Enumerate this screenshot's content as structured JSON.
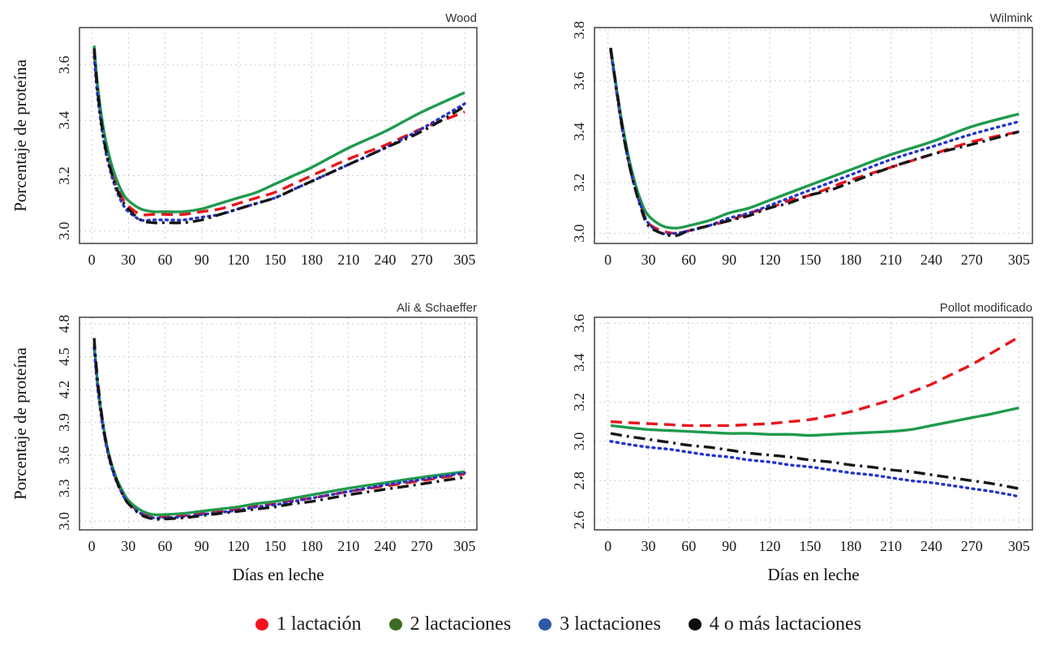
{
  "figure": {
    "background": "#ffffff",
    "axis_label_y": "Porcentaje de proteína",
    "axis_label_x": "Días en leche",
    "legend": {
      "items": [
        {
          "label": "1 lactación",
          "color": "#f5121d"
        },
        {
          "label": "2 lactaciones",
          "color": "#3d6b26"
        },
        {
          "label": "3 lactaciones",
          "color": "#2e59a8"
        },
        {
          "label": "4 o más lactaciones",
          "color": "#0d0d0d"
        }
      ]
    },
    "colors": {
      "curve_red": "#e8141c",
      "curve_green": "#1f9a4e",
      "curve_blue": "#2233cc",
      "curve_black": "#151515",
      "grid": "#cbcbcb",
      "box_border": "#4c4c4c",
      "tick_text": "#1a1a1a",
      "title_text": "#333333"
    }
  },
  "chart_data": [
    {
      "type": "line",
      "title": "Wood",
      "xlabel": "",
      "ylabel": "Porcentaje de proteína",
      "x_ticks": [
        0,
        30,
        60,
        90,
        120,
        150,
        180,
        210,
        240,
        270,
        305
      ],
      "y_ticks": [
        3.0,
        3.2,
        3.4,
        3.6
      ],
      "xlim": [
        -10,
        315
      ],
      "ylim": [
        2.955,
        3.735
      ],
      "grid": true,
      "series": [
        {
          "name": "1 lactación",
          "color": "#e8141c",
          "style": "dashed",
          "x": [
            2,
            5,
            10,
            15,
            20,
            25,
            30,
            40,
            50,
            60,
            75,
            90,
            105,
            120,
            135,
            150,
            165,
            180,
            210,
            240,
            270,
            305
          ],
          "y": [
            3.65,
            3.5,
            3.34,
            3.24,
            3.17,
            3.12,
            3.09,
            3.06,
            3.06,
            3.06,
            3.06,
            3.07,
            3.08,
            3.1,
            3.12,
            3.14,
            3.17,
            3.2,
            3.26,
            3.31,
            3.37,
            3.43
          ]
        },
        {
          "name": "2 lactaciones",
          "color": "#1f9a4e",
          "style": "solid",
          "x": [
            2,
            5,
            10,
            15,
            20,
            25,
            30,
            40,
            50,
            60,
            75,
            90,
            105,
            120,
            135,
            150,
            165,
            180,
            210,
            240,
            270,
            305
          ],
          "y": [
            3.67,
            3.52,
            3.36,
            3.26,
            3.19,
            3.14,
            3.11,
            3.08,
            3.07,
            3.07,
            3.07,
            3.08,
            3.1,
            3.12,
            3.14,
            3.17,
            3.2,
            3.23,
            3.3,
            3.36,
            3.43,
            3.5
          ]
        },
        {
          "name": "3 lactaciones",
          "color": "#2233cc",
          "style": "dotted",
          "x": [
            2,
            5,
            10,
            15,
            20,
            25,
            30,
            40,
            50,
            60,
            75,
            90,
            105,
            120,
            135,
            150,
            165,
            180,
            210,
            240,
            270,
            305
          ],
          "y": [
            3.63,
            3.48,
            3.32,
            3.22,
            3.15,
            3.1,
            3.07,
            3.04,
            3.04,
            3.04,
            3.04,
            3.05,
            3.06,
            3.08,
            3.1,
            3.12,
            3.15,
            3.18,
            3.24,
            3.3,
            3.37,
            3.46
          ]
        },
        {
          "name": "4 o más lactaciones",
          "color": "#151515",
          "style": "dashdot",
          "x": [
            2,
            5,
            10,
            15,
            20,
            25,
            30,
            40,
            50,
            60,
            75,
            90,
            105,
            120,
            135,
            150,
            165,
            180,
            210,
            240,
            270,
            305
          ],
          "y": [
            3.66,
            3.5,
            3.33,
            3.23,
            3.16,
            3.11,
            3.08,
            3.04,
            3.03,
            3.03,
            3.03,
            3.04,
            3.06,
            3.08,
            3.1,
            3.12,
            3.15,
            3.18,
            3.24,
            3.3,
            3.36,
            3.45
          ]
        }
      ]
    },
    {
      "type": "line",
      "title": "Wilmink",
      "xlabel": "",
      "ylabel": "",
      "x_ticks": [
        0,
        30,
        60,
        90,
        120,
        150,
        180,
        210,
        240,
        270,
        305
      ],
      "y_ticks": [
        3.0,
        3.2,
        3.4,
        3.6,
        3.8
      ],
      "xlim": [
        -10,
        315
      ],
      "ylim": [
        2.96,
        3.81
      ],
      "grid": true,
      "series": [
        {
          "name": "1 lactación",
          "color": "#e8141c",
          "style": "dashed",
          "x": [
            2,
            5,
            10,
            15,
            20,
            25,
            30,
            40,
            50,
            60,
            75,
            90,
            105,
            120,
            135,
            150,
            165,
            180,
            210,
            240,
            270,
            305
          ],
          "y": [
            3.72,
            3.61,
            3.43,
            3.29,
            3.18,
            3.1,
            3.04,
            3.01,
            3.0,
            3.01,
            3.03,
            3.05,
            3.08,
            3.1,
            3.13,
            3.15,
            3.18,
            3.21,
            3.26,
            3.31,
            3.36,
            3.4
          ]
        },
        {
          "name": "2 lactaciones",
          "color": "#1f9a4e",
          "style": "solid",
          "x": [
            2,
            5,
            10,
            15,
            20,
            25,
            30,
            40,
            50,
            60,
            75,
            90,
            105,
            120,
            135,
            150,
            165,
            180,
            210,
            240,
            270,
            305
          ],
          "y": [
            3.73,
            3.62,
            3.45,
            3.31,
            3.2,
            3.12,
            3.07,
            3.03,
            3.02,
            3.03,
            3.05,
            3.08,
            3.1,
            3.13,
            3.16,
            3.19,
            3.22,
            3.25,
            3.31,
            3.36,
            3.42,
            3.47
          ]
        },
        {
          "name": "3 lactaciones",
          "color": "#2233cc",
          "style": "dotted",
          "x": [
            2,
            5,
            10,
            15,
            20,
            25,
            30,
            40,
            50,
            60,
            75,
            90,
            105,
            120,
            135,
            150,
            165,
            180,
            210,
            240,
            270,
            305
          ],
          "y": [
            3.72,
            3.61,
            3.43,
            3.29,
            3.18,
            3.1,
            3.04,
            3.0,
            3.0,
            3.01,
            3.03,
            3.06,
            3.08,
            3.11,
            3.14,
            3.17,
            3.2,
            3.23,
            3.29,
            3.34,
            3.39,
            3.44
          ]
        },
        {
          "name": "4 o más lactaciones",
          "color": "#151515",
          "style": "dashdot",
          "x": [
            2,
            5,
            10,
            15,
            20,
            25,
            30,
            40,
            50,
            60,
            75,
            90,
            105,
            120,
            135,
            150,
            165,
            180,
            210,
            240,
            270,
            305
          ],
          "y": [
            3.73,
            3.62,
            3.44,
            3.29,
            3.18,
            3.09,
            3.03,
            3.0,
            2.99,
            3.01,
            3.03,
            3.05,
            3.07,
            3.1,
            3.12,
            3.15,
            3.17,
            3.2,
            3.26,
            3.31,
            3.35,
            3.4
          ]
        }
      ]
    },
    {
      "type": "line",
      "title": "Ali & Schaeffer",
      "xlabel": "Días en leche",
      "ylabel": "Porcentaje de proteína",
      "x_ticks": [
        0,
        30,
        60,
        90,
        120,
        150,
        180,
        210,
        240,
        270,
        305
      ],
      "y_ticks": [
        3.0,
        3.3,
        3.6,
        3.9,
        4.2,
        4.5,
        4.8
      ],
      "xlim": [
        -10,
        315
      ],
      "ylim": [
        2.92,
        4.86
      ],
      "grid": true,
      "series": [
        {
          "name": "1 lactación",
          "color": "#e8141c",
          "style": "dashed",
          "x": [
            2,
            5,
            10,
            15,
            20,
            25,
            30,
            40,
            50,
            60,
            75,
            90,
            105,
            120,
            135,
            150,
            165,
            180,
            210,
            240,
            270,
            305
          ],
          "y": [
            4.6,
            4.22,
            3.81,
            3.55,
            3.38,
            3.26,
            3.17,
            3.08,
            3.05,
            3.04,
            3.05,
            3.07,
            3.09,
            3.11,
            3.14,
            3.16,
            3.19,
            3.21,
            3.27,
            3.32,
            3.37,
            3.43
          ]
        },
        {
          "name": "2 lactaciones",
          "color": "#1f9a4e",
          "style": "solid",
          "x": [
            2,
            5,
            10,
            15,
            20,
            25,
            30,
            40,
            50,
            60,
            75,
            90,
            105,
            120,
            135,
            150,
            165,
            180,
            210,
            240,
            270,
            305
          ],
          "y": [
            4.62,
            4.25,
            3.83,
            3.57,
            3.4,
            3.28,
            3.19,
            3.1,
            3.06,
            3.06,
            3.07,
            3.09,
            3.11,
            3.13,
            3.16,
            3.18,
            3.21,
            3.24,
            3.3,
            3.35,
            3.4,
            3.45
          ]
        },
        {
          "name": "3 lactaciones",
          "color": "#2233cc",
          "style": "dotted",
          "x": [
            2,
            5,
            10,
            15,
            20,
            25,
            30,
            40,
            50,
            60,
            75,
            90,
            105,
            120,
            135,
            150,
            165,
            180,
            210,
            240,
            270,
            305
          ],
          "y": [
            4.58,
            4.2,
            3.8,
            3.54,
            3.37,
            3.25,
            3.16,
            3.07,
            3.03,
            3.03,
            3.04,
            3.06,
            3.08,
            3.1,
            3.13,
            3.15,
            3.18,
            3.21,
            3.27,
            3.33,
            3.38,
            3.44
          ]
        },
        {
          "name": "4 o más lactaciones",
          "color": "#151515",
          "style": "dashdot",
          "x": [
            2,
            5,
            10,
            15,
            20,
            25,
            30,
            40,
            50,
            60,
            75,
            90,
            105,
            120,
            135,
            150,
            165,
            180,
            210,
            240,
            270,
            305
          ],
          "y": [
            4.67,
            4.27,
            3.83,
            3.56,
            3.38,
            3.25,
            3.16,
            3.06,
            3.02,
            3.02,
            3.03,
            3.05,
            3.07,
            3.09,
            3.11,
            3.13,
            3.16,
            3.18,
            3.24,
            3.29,
            3.34,
            3.4
          ]
        }
      ]
    },
    {
      "type": "line",
      "title": "Pollot modificado",
      "xlabel": "Días en leche",
      "ylabel": "",
      "x_ticks": [
        0,
        30,
        60,
        90,
        120,
        150,
        180,
        210,
        240,
        270,
        305
      ],
      "y_ticks": [
        2.6,
        2.8,
        3.0,
        3.2,
        3.4,
        3.6
      ],
      "xlim": [
        -10,
        315
      ],
      "ylim": [
        2.55,
        3.63
      ],
      "grid": true,
      "series": [
        {
          "name": "1 lactación",
          "color": "#e8141c",
          "style": "dashed",
          "x": [
            2,
            15,
            30,
            45,
            60,
            75,
            90,
            105,
            120,
            135,
            150,
            165,
            180,
            195,
            210,
            225,
            240,
            255,
            270,
            285,
            305
          ],
          "y": [
            3.1,
            3.095,
            3.09,
            3.085,
            3.08,
            3.08,
            3.08,
            3.085,
            3.09,
            3.1,
            3.11,
            3.13,
            3.15,
            3.18,
            3.21,
            3.25,
            3.29,
            3.34,
            3.39,
            3.45,
            3.53
          ]
        },
        {
          "name": "2 lactaciones",
          "color": "#1f9a4e",
          "style": "solid",
          "x": [
            2,
            15,
            30,
            45,
            60,
            75,
            90,
            105,
            120,
            135,
            150,
            165,
            180,
            195,
            210,
            225,
            240,
            255,
            270,
            285,
            305
          ],
          "y": [
            3.08,
            3.07,
            3.06,
            3.055,
            3.05,
            3.045,
            3.04,
            3.04,
            3.035,
            3.035,
            3.03,
            3.035,
            3.04,
            3.045,
            3.05,
            3.06,
            3.08,
            3.1,
            3.12,
            3.14,
            3.17
          ]
        },
        {
          "name": "3 lactaciones",
          "color": "#2233cc",
          "style": "dotted",
          "x": [
            2,
            15,
            30,
            45,
            60,
            75,
            90,
            105,
            120,
            135,
            150,
            165,
            180,
            195,
            210,
            225,
            240,
            255,
            270,
            285,
            305
          ],
          "y": [
            3.0,
            2.985,
            2.97,
            2.96,
            2.945,
            2.93,
            2.92,
            2.905,
            2.895,
            2.88,
            2.87,
            2.855,
            2.84,
            2.83,
            2.815,
            2.8,
            2.79,
            2.775,
            2.76,
            2.745,
            2.72
          ]
        },
        {
          "name": "4 o más lactaciones",
          "color": "#151515",
          "style": "dashdot",
          "x": [
            2,
            15,
            30,
            45,
            60,
            75,
            90,
            105,
            120,
            135,
            150,
            165,
            180,
            195,
            210,
            225,
            240,
            255,
            270,
            285,
            305
          ],
          "y": [
            3.04,
            3.025,
            3.01,
            2.995,
            2.98,
            2.97,
            2.955,
            2.94,
            2.93,
            2.92,
            2.905,
            2.895,
            2.88,
            2.87,
            2.855,
            2.845,
            2.83,
            2.815,
            2.8,
            2.785,
            2.76
          ]
        }
      ]
    }
  ]
}
